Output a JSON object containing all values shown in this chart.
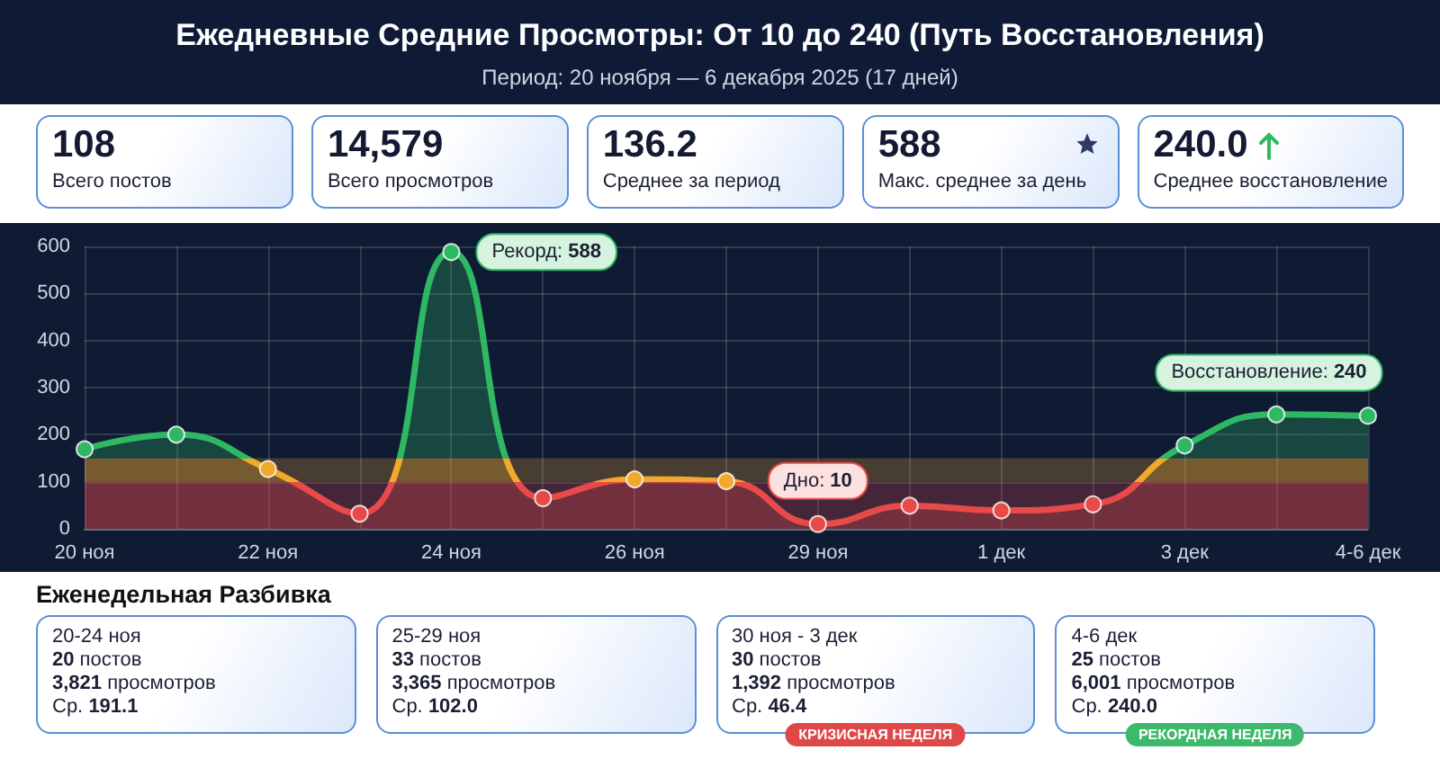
{
  "chart_data": [
    {
      "type": "other",
      "title": "Ежедневные Средние Просмотры: От 10 до 240 (Путь Восстановления)",
      "subtitle": "Период: 20 ноября — 6 декабря 2025 (17 дней)",
      "annotations": [
        "108\nВсего постов",
        "14,579\nВсего просмотров",
        "136.2\nСреднее за период",
        "588\nМакс. среднее за день",
        "240.0\nСреднее восстановление"
      ]
    },
    {
      "type": "area",
      "categories": [
        "20 ноя",
        null,
        "22 ноя",
        null,
        "24 ноя",
        null,
        "26 ноя",
        null,
        "29 ноя",
        null,
        "1 дек",
        null,
        "3 дек",
        null,
        "4-6 дек"
      ],
      "values": [
        169,
        200,
        127,
        32,
        588,
        65,
        105,
        101,
        10,
        49,
        39,
        52,
        177,
        243,
        240
      ],
      "color": "#2fb864",
      "ylim": [
        0,
        600
      ],
      "yticks": [
        0,
        100,
        200,
        300,
        400,
        500,
        600
      ],
      "grid": true,
      "marker": "circle",
      "bands": [
        {
          "axis": "y",
          "from": 0,
          "to": 100,
          "color": "#e84a4a"
        },
        {
          "axis": "y",
          "from": 100,
          "to": 150,
          "color": "#f0a92b"
        }
      ],
      "annotations": [
        {
          "text": "Рекорд: 588",
          "x": "24 ноя",
          "y": 588
        },
        {
          "text": "Дно: 10",
          "x": "29 ноя",
          "y": 10
        },
        {
          "text": "Восстановление: 240",
          "x": "4-6 дек",
          "y": 240
        }
      ]
    },
    {
      "type": "other",
      "title": "Еженедельная Разбивка",
      "annotations": [
        "20-24 ноя\n20 постов\n3,821 просмотров\nСр. 191.1",
        "25-29 ноя\n33 постов\n3,365 просмотров\nСр. 102.0",
        "30 ноя - 3 дек\n30 постов\n1,392 просмотров\nСр. 46.4\nКРИЗИСНАЯ НЕДЕЛЯ",
        "4-6 дек\n25 постов\n6,001 просмотров\nСр. 240.0\nРЕКОРДНАЯ НЕДЕЛЯ"
      ],
      "colors": [
        null,
        null,
        "#e04848",
        "#3cb96a"
      ]
    }
  ]
}
